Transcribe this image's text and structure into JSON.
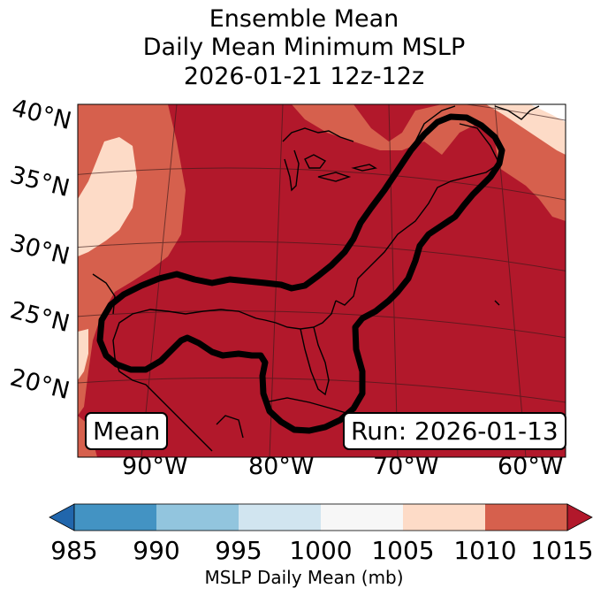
{
  "title": {
    "line1": "Ensemble Mean",
    "line2": "Daily Mean Minimum MSLP",
    "line3": "2026-01-21 12z-12z"
  },
  "lat_labels": [
    "40°N",
    "35°N",
    "30°N",
    "25°N",
    "20°N"
  ],
  "lon_labels": [
    "90°W",
    "80°W",
    "70°W",
    "60°W"
  ],
  "legend": {
    "mean_label": "Mean",
    "run_label": "Run: 2026-01-13"
  },
  "colorbar": {
    "ticks": [
      "985",
      "990",
      "995",
      "1000",
      "1005",
      "1010",
      "1015"
    ],
    "label": "MSLP Daily Mean (mb)",
    "colors": [
      "#2166ac",
      "#4393c3",
      "#92c5de",
      "#d1e5f0",
      "#f7f7f7",
      "#fddbc7",
      "#d6604d",
      "#b2182b"
    ]
  }
}
